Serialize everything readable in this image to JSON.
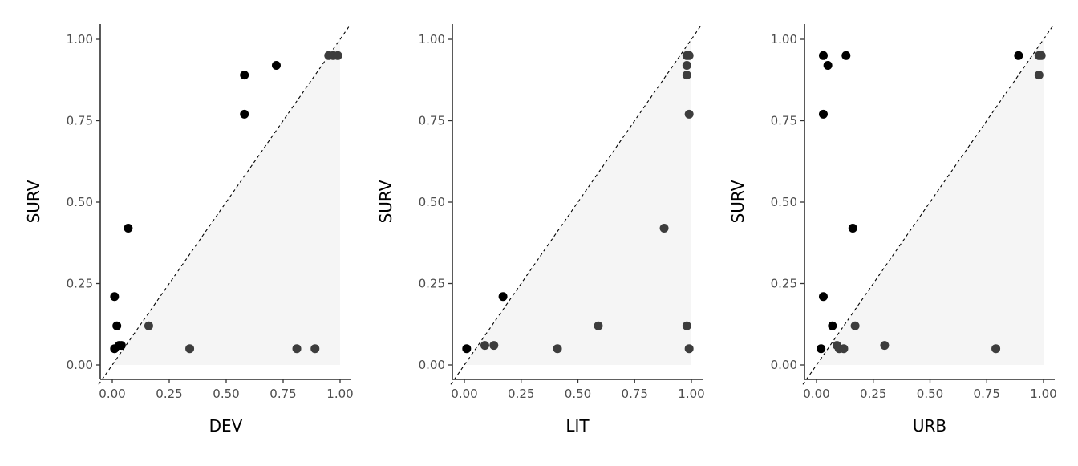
{
  "colors": {
    "point_above_diagonal": "#000000",
    "point_below_diagonal": "#3d3d3d",
    "shaded_region": "#f5f5f5"
  },
  "chart_data": [
    {
      "type": "scatter",
      "xlabel": "DEV",
      "ylabel": "SURV",
      "xlim": [
        0,
        1
      ],
      "ylim": [
        0,
        1
      ],
      "xticks": [
        "0.00",
        "0.25",
        "0.50",
        "0.75",
        "1.00"
      ],
      "yticks": [
        "0.00",
        "0.25",
        "0.50",
        "0.75",
        "1.00"
      ],
      "reference_line": "y = x (dashed)",
      "shaded_region": "below diagonal",
      "grid": false,
      "points": [
        {
          "x": 0.01,
          "y": 0.21
        },
        {
          "x": 0.07,
          "y": 0.42
        },
        {
          "x": 0.02,
          "y": 0.12
        },
        {
          "x": 0.03,
          "y": 0.06
        },
        {
          "x": 0.04,
          "y": 0.06
        },
        {
          "x": 0.01,
          "y": 0.05
        },
        {
          "x": 0.58,
          "y": 0.89
        },
        {
          "x": 0.58,
          "y": 0.77
        },
        {
          "x": 0.72,
          "y": 0.92
        },
        {
          "x": 0.95,
          "y": 0.95
        },
        {
          "x": 0.97,
          "y": 0.95
        },
        {
          "x": 0.99,
          "y": 0.95
        },
        {
          "x": 0.16,
          "y": 0.12
        },
        {
          "x": 0.34,
          "y": 0.05
        },
        {
          "x": 0.81,
          "y": 0.05
        },
        {
          "x": 0.89,
          "y": 0.05
        }
      ]
    },
    {
      "type": "scatter",
      "xlabel": "LIT",
      "ylabel": "SURV",
      "xlim": [
        0,
        1
      ],
      "ylim": [
        0,
        1
      ],
      "xticks": [
        "0.00",
        "0.25",
        "0.50",
        "0.75",
        "1.00"
      ],
      "yticks": [
        "0.00",
        "0.25",
        "0.50",
        "0.75",
        "1.00"
      ],
      "reference_line": "y = x (dashed)",
      "shaded_region": "below diagonal",
      "grid": false,
      "points": [
        {
          "x": 0.01,
          "y": 0.05
        },
        {
          "x": 0.17,
          "y": 0.21
        },
        {
          "x": 0.09,
          "y": 0.06
        },
        {
          "x": 0.13,
          "y": 0.06
        },
        {
          "x": 0.41,
          "y": 0.05
        },
        {
          "x": 0.59,
          "y": 0.12
        },
        {
          "x": 0.88,
          "y": 0.42
        },
        {
          "x": 0.98,
          "y": 0.12
        },
        {
          "x": 0.99,
          "y": 0.05
        },
        {
          "x": 0.98,
          "y": 0.95
        },
        {
          "x": 0.99,
          "y": 0.95
        },
        {
          "x": 0.98,
          "y": 0.92
        },
        {
          "x": 0.98,
          "y": 0.89
        },
        {
          "x": 0.99,
          "y": 0.77
        }
      ]
    },
    {
      "type": "scatter",
      "xlabel": "URB",
      "ylabel": "SURV",
      "xlim": [
        0,
        1
      ],
      "ylim": [
        0,
        1
      ],
      "xticks": [
        "0.00",
        "0.25",
        "0.50",
        "0.75",
        "1.00"
      ],
      "yticks": [
        "0.00",
        "0.25",
        "0.50",
        "0.75",
        "1.00"
      ],
      "reference_line": "y = x (dashed)",
      "shaded_region": "below diagonal",
      "grid": false,
      "points": [
        {
          "x": 0.03,
          "y": 0.95
        },
        {
          "x": 0.05,
          "y": 0.92
        },
        {
          "x": 0.13,
          "y": 0.95
        },
        {
          "x": 0.03,
          "y": 0.77
        },
        {
          "x": 0.16,
          "y": 0.42
        },
        {
          "x": 0.03,
          "y": 0.21
        },
        {
          "x": 0.07,
          "y": 0.12
        },
        {
          "x": 0.02,
          "y": 0.05
        },
        {
          "x": 0.09,
          "y": 0.06
        },
        {
          "x": 0.1,
          "y": 0.05
        },
        {
          "x": 0.12,
          "y": 0.05
        },
        {
          "x": 0.17,
          "y": 0.12
        },
        {
          "x": 0.3,
          "y": 0.06
        },
        {
          "x": 0.79,
          "y": 0.05
        },
        {
          "x": 0.89,
          "y": 0.95
        },
        {
          "x": 0.98,
          "y": 0.95
        },
        {
          "x": 0.99,
          "y": 0.95
        },
        {
          "x": 0.98,
          "y": 0.89
        }
      ]
    }
  ]
}
